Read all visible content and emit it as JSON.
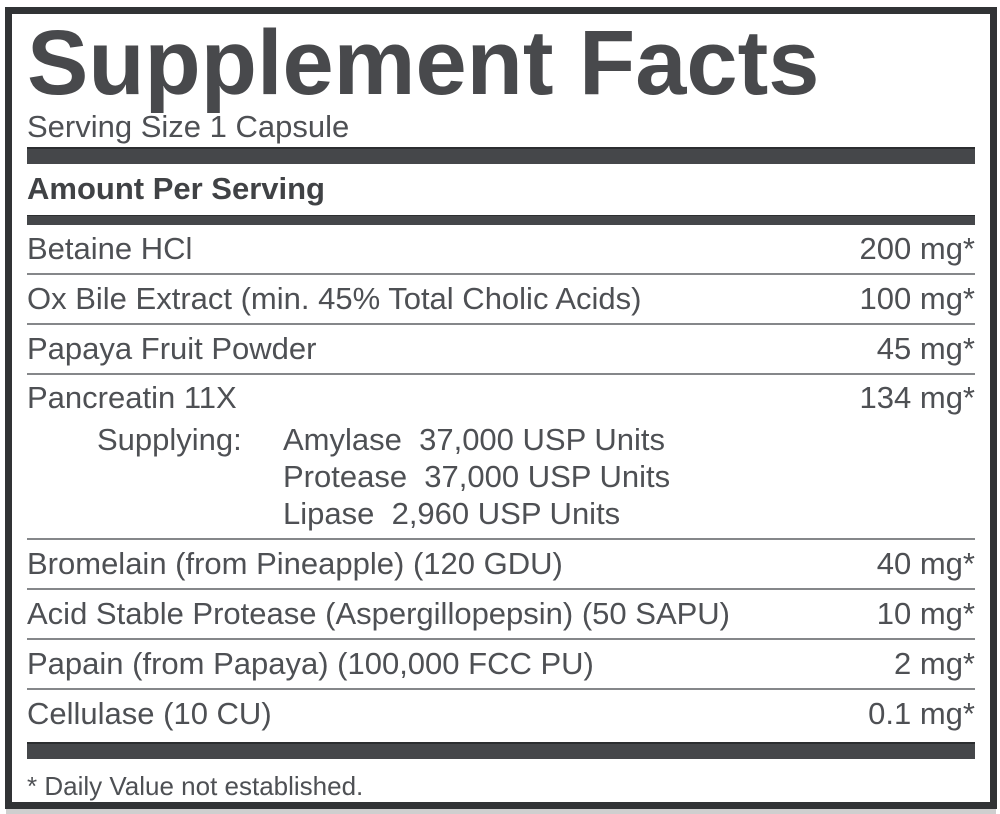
{
  "label": {
    "title": "Supplement Facts",
    "serving_size": "Serving Size 1 Capsule",
    "amount_header": "Amount Per Serving",
    "rows": [
      {
        "name": "Betaine HCl",
        "amount": "200 mg*"
      },
      {
        "name": "Ox Bile Extract (min. 45% Total Cholic Acids)",
        "amount": "100 mg*"
      },
      {
        "name": "Papaya Fruit Powder",
        "amount": "45 mg*"
      },
      {
        "name": "Pancreatin 11X",
        "amount": "134 mg*",
        "sub_label": "Supplying:",
        "sub_items": [
          "Amylase  37,000 USP Units",
          "Protease  37,000 USP Units",
          "Lipase  2,960 USP Units"
        ]
      },
      {
        "name": "Bromelain (from Pineapple) (120 GDU)",
        "amount": "40 mg*"
      },
      {
        "name": "Acid Stable Protease (Aspergillopepsin) (50 SAPU)",
        "amount": "10 mg*"
      },
      {
        "name": "Papain (from Papaya) (100,000 FCC PU)",
        "amount": "2 mg*"
      },
      {
        "name": "Cellulase (10 CU)",
        "amount": "0.1 mg*"
      }
    ],
    "footnote": "* Daily Value not established.",
    "colors": {
      "bar": "#45474a",
      "border": "#313335",
      "title_text": "#48494c",
      "body_text": "#4e5054",
      "separator": "#85878a"
    }
  }
}
